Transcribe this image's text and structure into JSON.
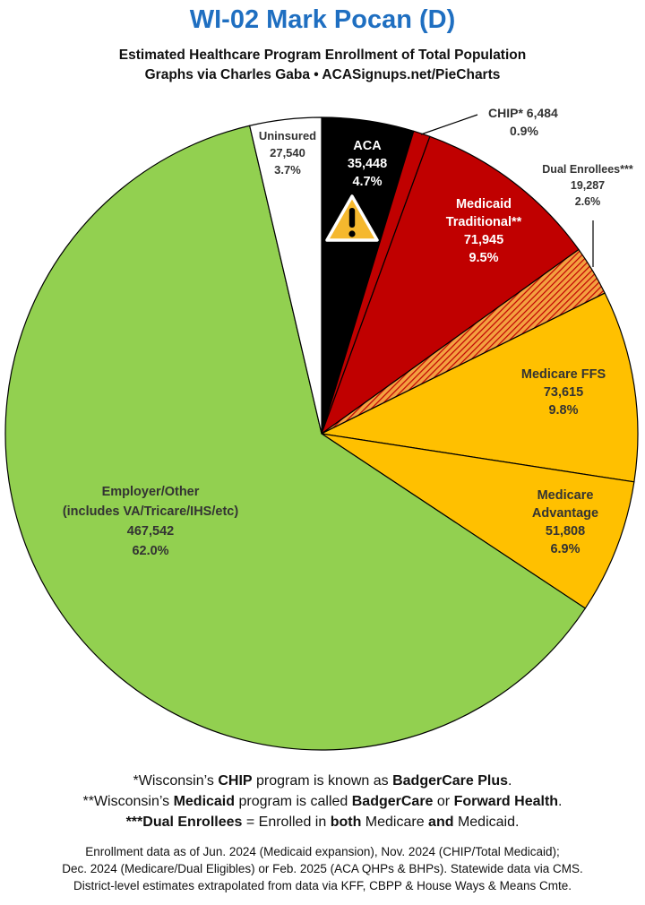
{
  "header": {
    "title": "WI-02 Mark Pocan (D)",
    "subtitle_line1": "Estimated Healthcare Program Enrollment of Total Population",
    "subtitle_line2": "Graphs via Charles Gaba  •  ACASignups.net/PieCharts"
  },
  "chart_data": {
    "type": "pie",
    "title": "WI-02 Mark Pocan (D)",
    "slices": [
      {
        "label": "ACA",
        "value": 35448,
        "percent": "4.7%",
        "value_text": "35,448",
        "color": "#000000"
      },
      {
        "label": "CHIP*",
        "value": 6484,
        "percent": "0.9%",
        "value_text": "6,484",
        "color": "#c00000"
      },
      {
        "label": "Medicaid Traditional**",
        "label_lines": [
          "Medicaid",
          "Traditional**"
        ],
        "value": 71945,
        "percent": "9.5%",
        "value_text": "71,945",
        "color": "#c00000"
      },
      {
        "label": "Dual Enrollees***",
        "value": 19287,
        "percent": "2.6%",
        "value_text": "19,287",
        "color": "#e07a1a",
        "pattern": "striped"
      },
      {
        "label": "Medicare FFS",
        "value": 73615,
        "percent": "9.8%",
        "value_text": "73,615",
        "color": "#ffc000"
      },
      {
        "label": "Medicare Advantage",
        "label_lines": [
          "Medicare",
          "Advantage"
        ],
        "value": 51808,
        "percent": "6.9%",
        "value_text": "51,808",
        "color": "#ffc000"
      },
      {
        "label": "Employer/Other (includes VA/Tricare/IHS/etc)",
        "label_lines": [
          "Employer/Other",
          "(includes VA/Tricare/IHS/etc)"
        ],
        "value": 467542,
        "percent": "62.0%",
        "value_text": "467,542",
        "color": "#92d050"
      },
      {
        "label": "Uninsured",
        "value": 27540,
        "percent": "3.7%",
        "value_text": "27,540",
        "color": "#ffffff"
      }
    ],
    "warning_icon": "warning-triangle-icon"
  },
  "footnotes": {
    "chip": {
      "a": "*Wisconsin’s ",
      "b": "CHIP",
      "c": " program is known as ",
      "d": "BadgerCare Plus",
      "e": "."
    },
    "medicaid": {
      "a": "**Wisconsin’s ",
      "b": "Medicaid",
      "c": " program is called ",
      "d": "BadgerCare",
      "e": " or ",
      "f": "Forward Health",
      "g": "."
    },
    "dual": {
      "a": "***Dual Enrollees",
      "b": " = Enrolled in ",
      "c": "both",
      "d": " Medicare ",
      "e": "and",
      "f": " Medicaid."
    }
  },
  "sources": {
    "line1": "Enrollment data as of Jun. 2024 (Medicaid expansion), Nov. 2024 (CHIP/Total Medicaid);",
    "line2": "Dec. 2024 (Medicare/Dual Eligibles) or Feb. 2025 (ACA QHPs & BHPs). Statewide data via CMS.",
    "line3": "District-level estimates extrapolated from data via KFF, CBPP & House Ways & Means Cmte."
  }
}
